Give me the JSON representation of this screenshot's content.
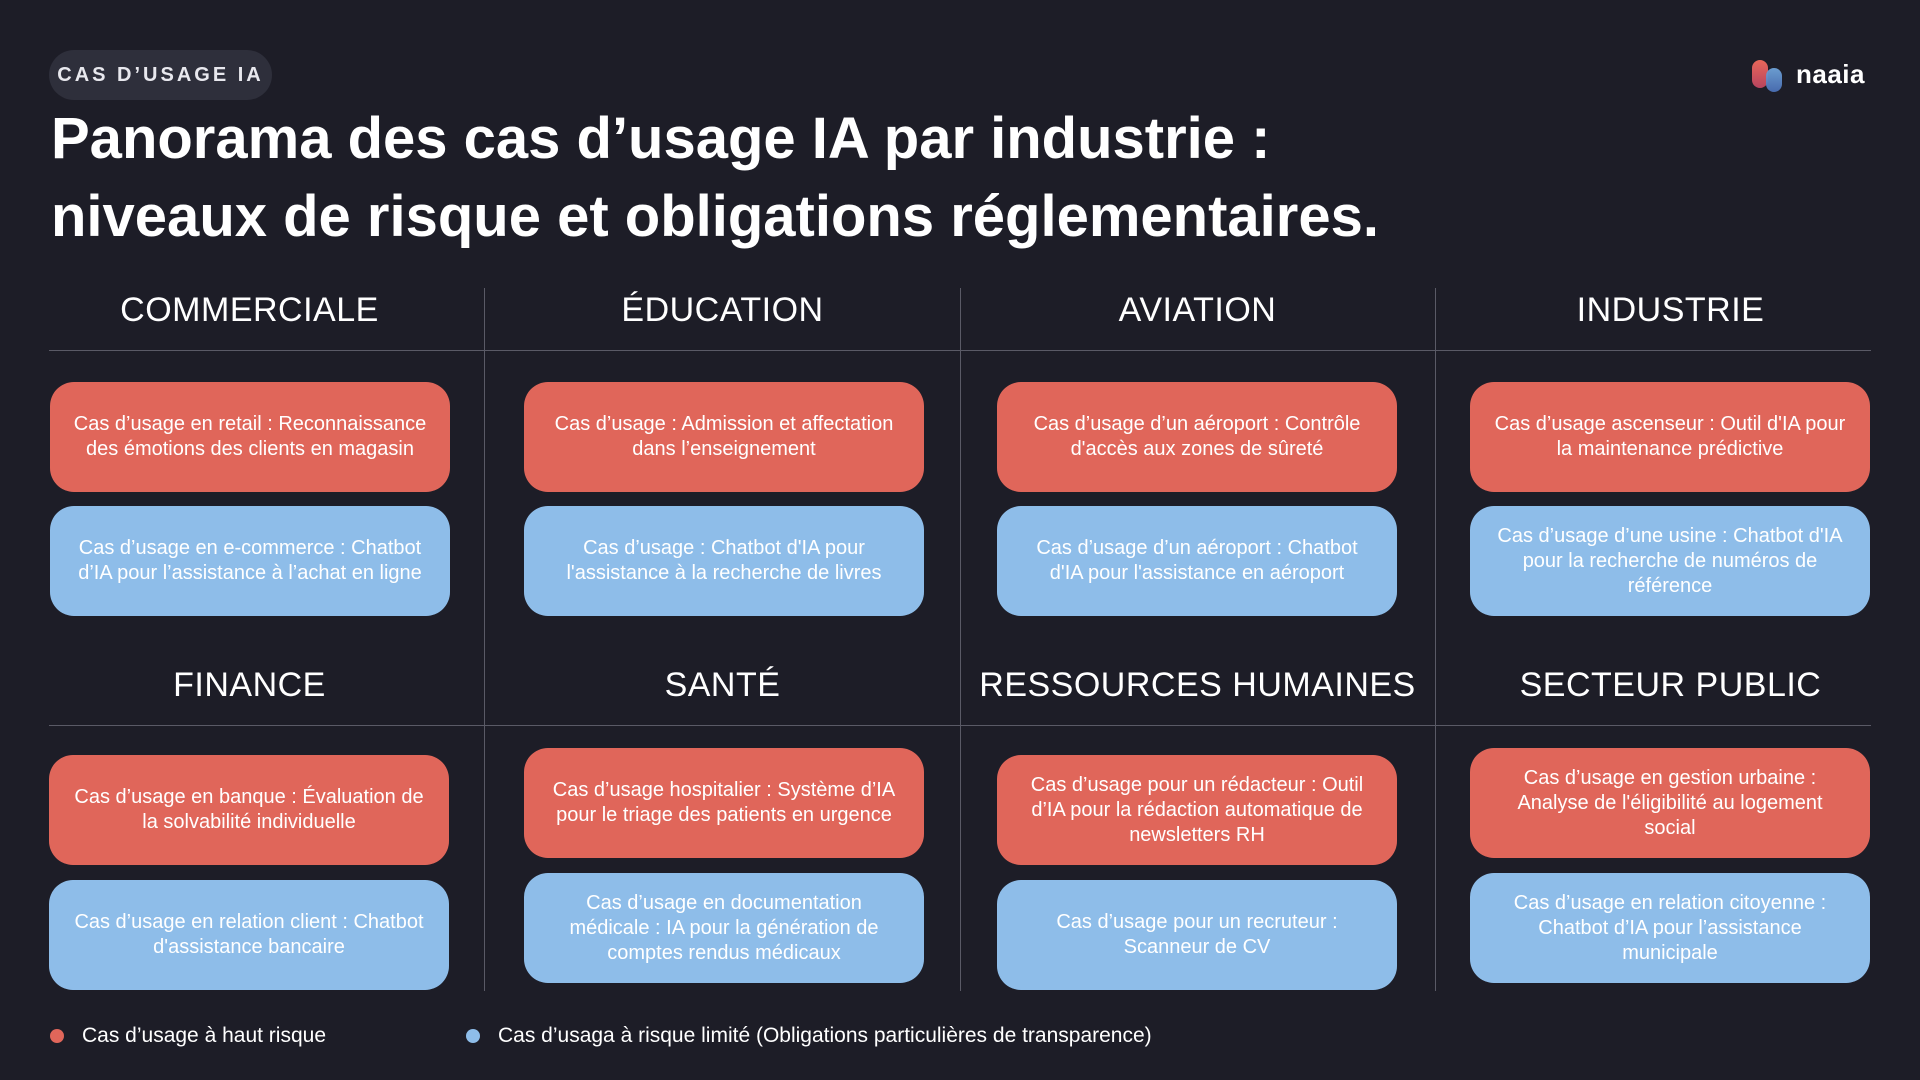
{
  "tag": "CAS D’USAGE IA",
  "brand": {
    "name": "naaia"
  },
  "title": {
    "line1": "Panorama des cas d’usage IA par industrie :",
    "line2": "niveaux de risque et obligations réglementaires."
  },
  "colors": {
    "background": "#1d1d27",
    "high_risk": "#e0665a",
    "limited_risk": "#8ebde9"
  },
  "sections": [
    {
      "title": "COMMERCIALE",
      "high": "Cas d’usage en retail : Reconnaissance des émotions des clients en magasin",
      "limited": "Cas d’usage en e-commerce : Chatbot d’IA pour l’assistance à l’achat en ligne"
    },
    {
      "title": "ÉDUCATION",
      "high": "Cas d’usage : Admission et affectation dans l’enseignement",
      "limited": "Cas d’usage : Chatbot d'IA pour l'assistance à la recherche de livres"
    },
    {
      "title": "AVIATION",
      "high": "Cas d’usage d’un aéroport : Contrôle d'accès aux zones de sûreté",
      "limited": "Cas d’usage d’un aéroport : Chatbot d'IA pour l'assistance en aéroport"
    },
    {
      "title": "INDUSTRIE",
      "high": "Cas d’usage ascenseur : Outil d'IA pour la maintenance prédictive",
      "limited": "Cas d’usage d’une usine : Chatbot d'IA pour la recherche de numéros de référence"
    },
    {
      "title": "FINANCE",
      "high": "Cas d’usage en banque : Évaluation de la solvabilité individuelle",
      "limited": "Cas d’usage en relation client : Chatbot d'assistance bancaire"
    },
    {
      "title": "SANTÉ",
      "high": "Cas d’usage hospitalier : Système d’IA pour le triage des patients en urgence",
      "limited": "Cas d’usage en documentation médicale : IA pour la génération de comptes rendus médicaux"
    },
    {
      "title": "RESSOURCES HUMAINES",
      "high": "Cas d’usage pour un rédacteur : Outil d’IA pour la rédaction automatique de newsletters RH",
      "limited": "Cas d’usage pour un recruteur : Scanneur de CV"
    },
    {
      "title": "SECTEUR PUBLIC",
      "high": "Cas d’usage en gestion urbaine : Analyse de l'éligibilité au logement social",
      "limited": "Cas d’usage en relation citoyenne : Chatbot d’IA pour l’assistance municipale"
    }
  ],
  "legend": {
    "high": "Cas d’usage à haut risque",
    "limited": "Cas d’usaga à risque limité (Obligations particulières de transparence)"
  }
}
